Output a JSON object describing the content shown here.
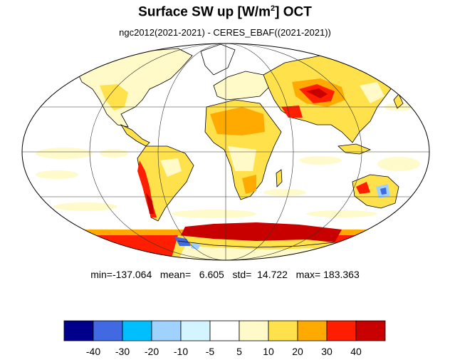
{
  "figure": {
    "title_main": "Surface SW up [W/m",
    "title_sup": "2",
    "title_end": "]  OCT",
    "subtitle": "ngc2012(2021-2021) - CERES_EBAF((2021-2021))"
  },
  "stats": {
    "text": "min=-137.064   mean=   6.605   std=  14.722   max= 183.363",
    "min": -137.064,
    "mean": 6.605,
    "std": 14.722,
    "max": 183.363
  },
  "colorbar": {
    "colors": [
      "#00008b",
      "#4169e1",
      "#00bfff",
      "#a0d2ff",
      "#d2f5ff",
      "#ffffff",
      "#fffac8",
      "#ffe14b",
      "#ffaa00",
      "#ff1e00",
      "#c80000"
    ],
    "labels": [
      "-40",
      "-30",
      "-20",
      "-10",
      "-5",
      "5",
      "10",
      "20",
      "30",
      "40"
    ]
  },
  "map": {
    "projection": "mollweide",
    "graticule": "30-degree",
    "colors": {
      "land_outline": "#000000",
      "ocean": "#ffffff",
      "weak_positive": "#fffac8",
      "positive": "#ffe14b",
      "strong_positive": "#ffaa00",
      "very_strong": "#ff1e00",
      "extreme": "#c80000",
      "negative": "#a0d2ff",
      "strong_negative": "#4169e1"
    }
  }
}
